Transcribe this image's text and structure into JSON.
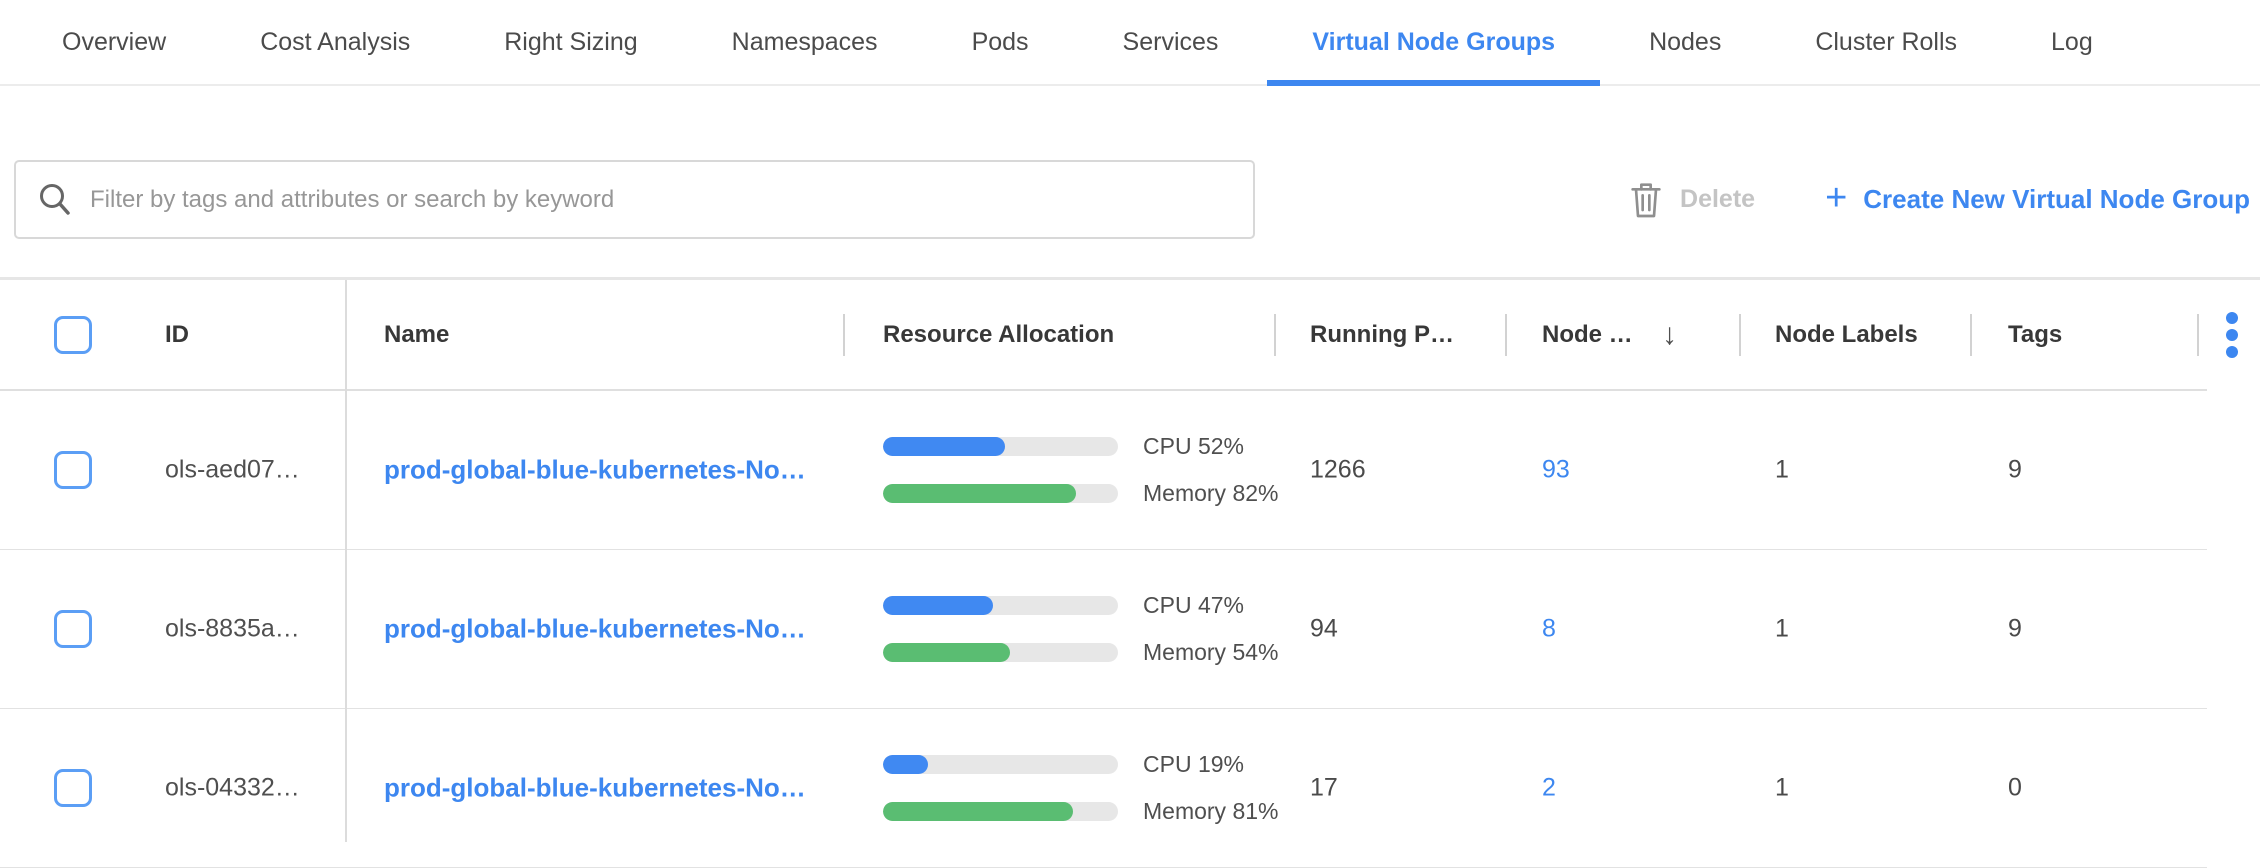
{
  "tabs": {
    "items": [
      {
        "label": "Overview",
        "active": false
      },
      {
        "label": "Cost Analysis",
        "active": false
      },
      {
        "label": "Right Sizing",
        "active": false
      },
      {
        "label": "Namespaces",
        "active": false
      },
      {
        "label": "Pods",
        "active": false
      },
      {
        "label": "Services",
        "active": false
      },
      {
        "label": "Virtual Node Groups",
        "active": true
      },
      {
        "label": "Nodes",
        "active": false
      },
      {
        "label": "Cluster Rolls",
        "active": false
      },
      {
        "label": "Log",
        "active": false
      }
    ]
  },
  "toolbar": {
    "filter_placeholder": "Filter by tags and attributes or search by keyword",
    "filter_value": "",
    "delete_label": "Delete",
    "plus_glyph": "+",
    "create_label": "Create New Virtual Node Group"
  },
  "table": {
    "headers": {
      "id": "ID",
      "name": "Name",
      "resource_allocation": "Resource Allocation",
      "running_pods": "Running P…",
      "nodes": "Node …",
      "node_labels": "Node Labels",
      "tags": "Tags"
    },
    "sort_icon": "↓",
    "rows": [
      {
        "id": "ols-aed07…",
        "name": "prod-global-blue-kubernetes-No…",
        "cpu_pct": 52,
        "cpu_label": "CPU 52%",
        "memory_pct": 82,
        "memory_label": "Memory 82%",
        "running_pods": "1266",
        "nodes": "93",
        "node_labels": "1",
        "tags": "9"
      },
      {
        "id": "ols-8835a…",
        "name": "prod-global-blue-kubernetes-No…",
        "cpu_pct": 47,
        "cpu_label": "CPU 47%",
        "memory_pct": 54,
        "memory_label": "Memory 54%",
        "running_pods": "94",
        "nodes": "8",
        "node_labels": "1",
        "tags": "9"
      },
      {
        "id": "ols-04332…",
        "name": "prod-global-blue-kubernetes-No…",
        "cpu_pct": 19,
        "cpu_label": "CPU 19%",
        "memory_pct": 81,
        "memory_label": "Memory 81%",
        "running_pods": "17",
        "nodes": "2",
        "node_labels": "1",
        "tags": "0"
      }
    ]
  },
  "colors": {
    "accent": "#3d87f0",
    "checkbox_border": "#5b9ef5",
    "cpu_bar": "#4089f2",
    "memory_bar": "#5abd72",
    "bar_track": "#e7e7e7",
    "disabled_text": "#c4c4c4"
  }
}
